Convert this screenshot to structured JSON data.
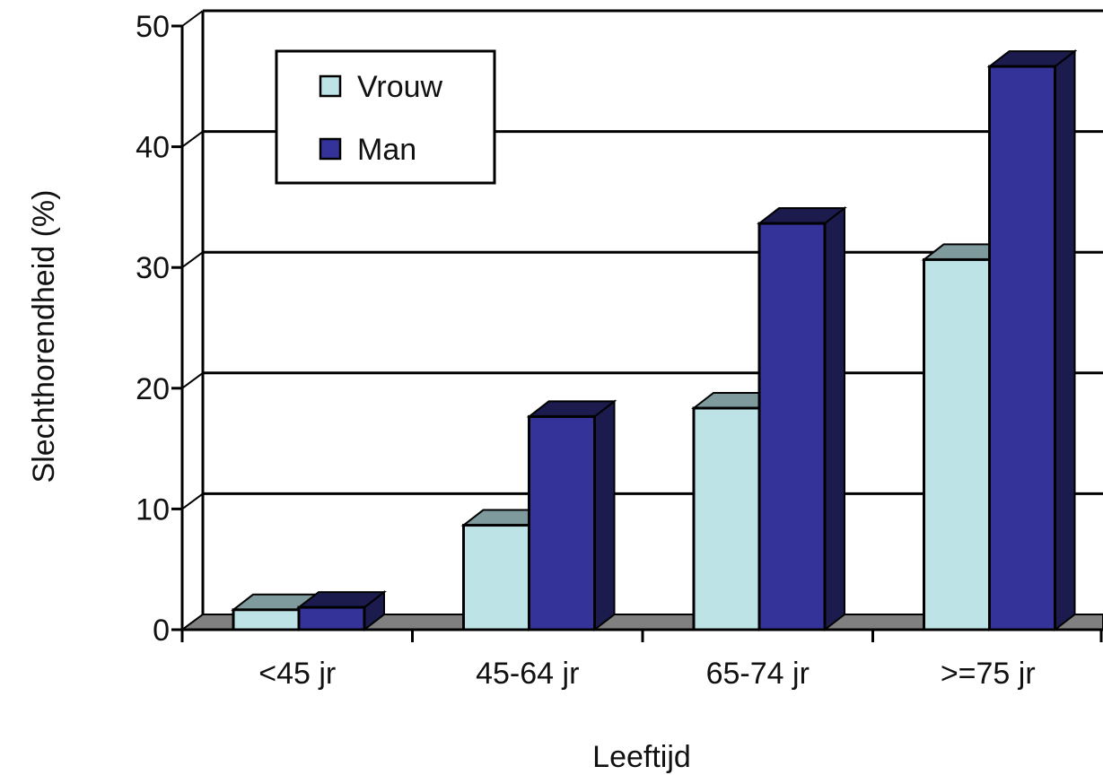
{
  "chart_data": {
    "type": "bar",
    "categories": [
      "<45 jr",
      "45-64 jr",
      "65-74 jr",
      ">=75 jr"
    ],
    "series": [
      {
        "name": "Vrouw",
        "values": [
          1.8,
          8.8,
          18.5,
          30.8
        ],
        "color": "#bde3e6",
        "side_color": "#7f9a9c"
      },
      {
        "name": "Man",
        "values": [
          2.0,
          17.8,
          33.8,
          46.8
        ],
        "color": "#333399",
        "side_color": "#1b1b4e"
      }
    ],
    "xlabel": "Leeftijd",
    "ylabel": "Slechthorendheid (%)",
    "ylim": [
      0,
      50
    ],
    "yticks": [
      "0",
      "10",
      "20",
      "30",
      "40",
      "50"
    ],
    "grid": true,
    "legend_position": "top-left",
    "floor_color": "#808080"
  }
}
